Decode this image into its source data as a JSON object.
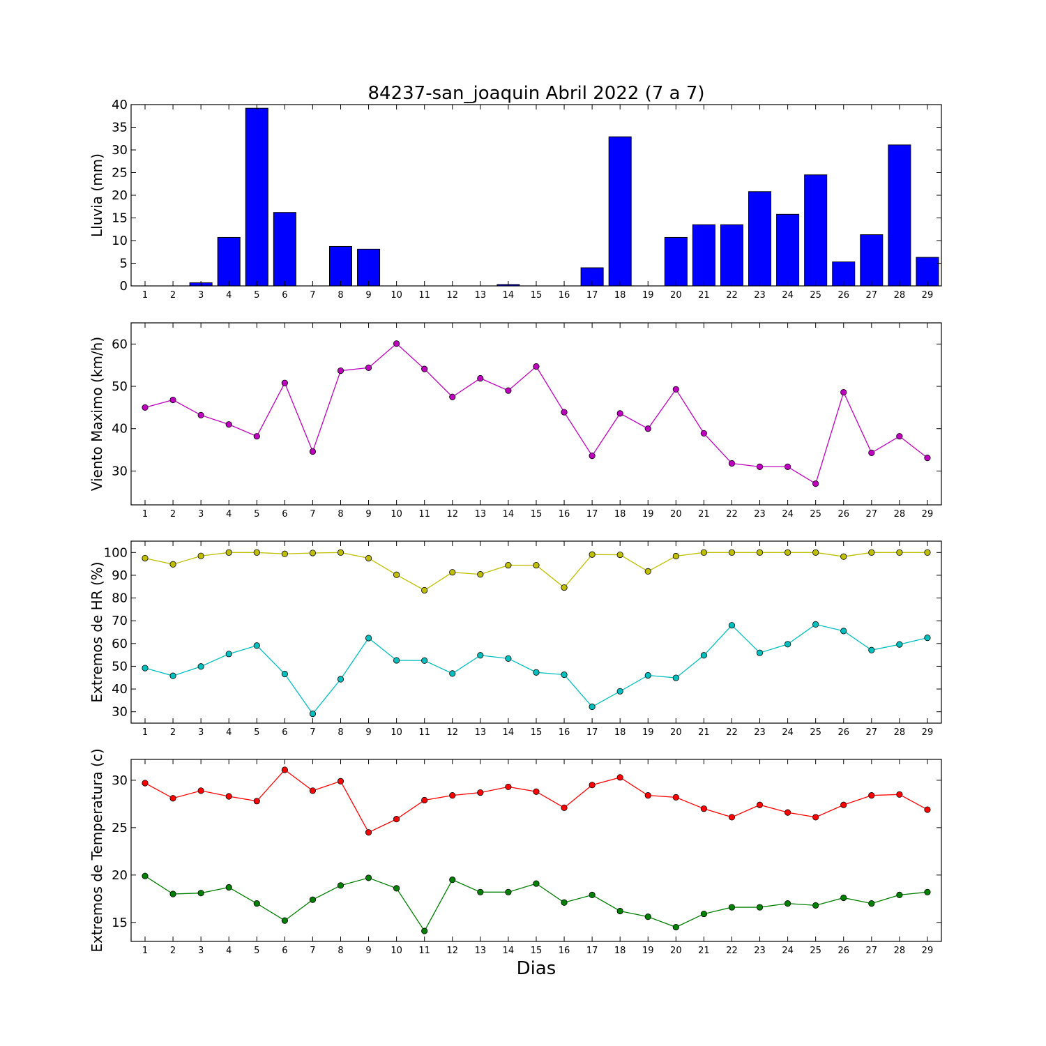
{
  "chart_data": {
    "title": "84237-san_joaquin Abril 2022  (7 a 7)",
    "xlabel": "Dias",
    "days": [
      "1",
      "2",
      "3",
      "4",
      "5",
      "6",
      "7",
      "8",
      "9",
      "10",
      "11",
      "12",
      "13",
      "14",
      "15",
      "16",
      "17",
      "18",
      "19",
      "20",
      "21",
      "22",
      "23",
      "24",
      "25",
      "26",
      "27",
      "28",
      "29"
    ],
    "panels": [
      {
        "type": "bar",
        "ylabel": "Lluvia (mm)",
        "ylim": [
          0,
          40
        ],
        "yticks": [
          0,
          5,
          10,
          15,
          20,
          25,
          30,
          35,
          40
        ],
        "grid": false,
        "series": [
          {
            "color": "#0000ff",
            "values": [
              0,
              0,
              0.7,
              10.7,
              39.2,
              16.2,
              0,
              8.7,
              8.1,
              0,
              0,
              0,
              0,
              0.3,
              0,
              0,
              4.0,
              32.9,
              0,
              10.7,
              13.5,
              13.5,
              20.8,
              15.8,
              24.5,
              5.3,
              11.3,
              31.1,
              6.3
            ]
          }
        ]
      },
      {
        "type": "line",
        "ylabel": "Viento Maximo (km/h)",
        "ylim": [
          22,
          65
        ],
        "yticks": [
          30,
          40,
          50,
          60
        ],
        "grid": false,
        "series": [
          {
            "color": "#bf00bf",
            "values": [
              45.0,
              46.8,
              43.2,
              41.0,
              38.2,
              50.8,
              34.6,
              53.7,
              54.4,
              60.1,
              54.1,
              47.5,
              51.9,
              49.0,
              54.7,
              43.9,
              33.6,
              43.6,
              40.0,
              49.3,
              38.9,
              31.8,
              31.0,
              31.0,
              27.0,
              48.6,
              34.3,
              38.2,
              33.1
            ]
          }
        ]
      },
      {
        "type": "line",
        "ylabel": "Extremos de HR (%)",
        "ylim": [
          25,
          105
        ],
        "yticks": [
          30,
          40,
          50,
          60,
          70,
          80,
          90,
          100
        ],
        "grid": false,
        "series": [
          {
            "color": "#bfbf00",
            "values": [
              97.5,
              94.8,
              98.5,
              100,
              100,
              99.4,
              99.8,
              100,
              97.5,
              90.2,
              83.4,
              91.3,
              90.4,
              94.4,
              94.4,
              84.6,
              99.1,
              99.0,
              91.7,
              98.4,
              100,
              100,
              100,
              100,
              100,
              98.2,
              100,
              100,
              100
            ]
          },
          {
            "color": "#00bfbf",
            "values": [
              49.2,
              45.8,
              49.9,
              55.4,
              59.1,
              46.6,
              29.1,
              44.3,
              62.4,
              52.6,
              52.5,
              46.8,
              54.8,
              53.4,
              47.3,
              46.3,
              32.2,
              39.0,
              46.0,
              44.9,
              54.8,
              68.0,
              55.9,
              59.7,
              68.4,
              65.5,
              57.1,
              59.6,
              62.5
            ]
          }
        ]
      },
      {
        "type": "line",
        "ylabel": "Extremos de Temperatura (c)",
        "ylim": [
          13,
          32.2
        ],
        "yticks": [
          15,
          20,
          25,
          30
        ],
        "grid": false,
        "series": [
          {
            "color": "#ff0000",
            "values": [
              29.7,
              28.1,
              28.9,
              28.3,
              27.8,
              31.1,
              28.9,
              29.9,
              24.5,
              25.9,
              27.9,
              28.4,
              28.7,
              29.3,
              28.8,
              27.1,
              29.5,
              30.3,
              28.4,
              28.2,
              27.0,
              26.1,
              27.4,
              26.6,
              26.1,
              27.4,
              28.4,
              28.5,
              26.9
            ]
          },
          {
            "color": "#008000",
            "values": [
              19.9,
              18.0,
              18.1,
              18.7,
              17.0,
              15.2,
              17.4,
              18.9,
              19.7,
              18.6,
              14.1,
              19.5,
              18.2,
              18.2,
              19.1,
              17.1,
              17.9,
              16.2,
              15.6,
              14.5,
              15.9,
              16.6,
              16.6,
              17.0,
              16.8,
              17.6,
              17.0,
              17.9,
              18.2
            ]
          }
        ]
      }
    ]
  }
}
